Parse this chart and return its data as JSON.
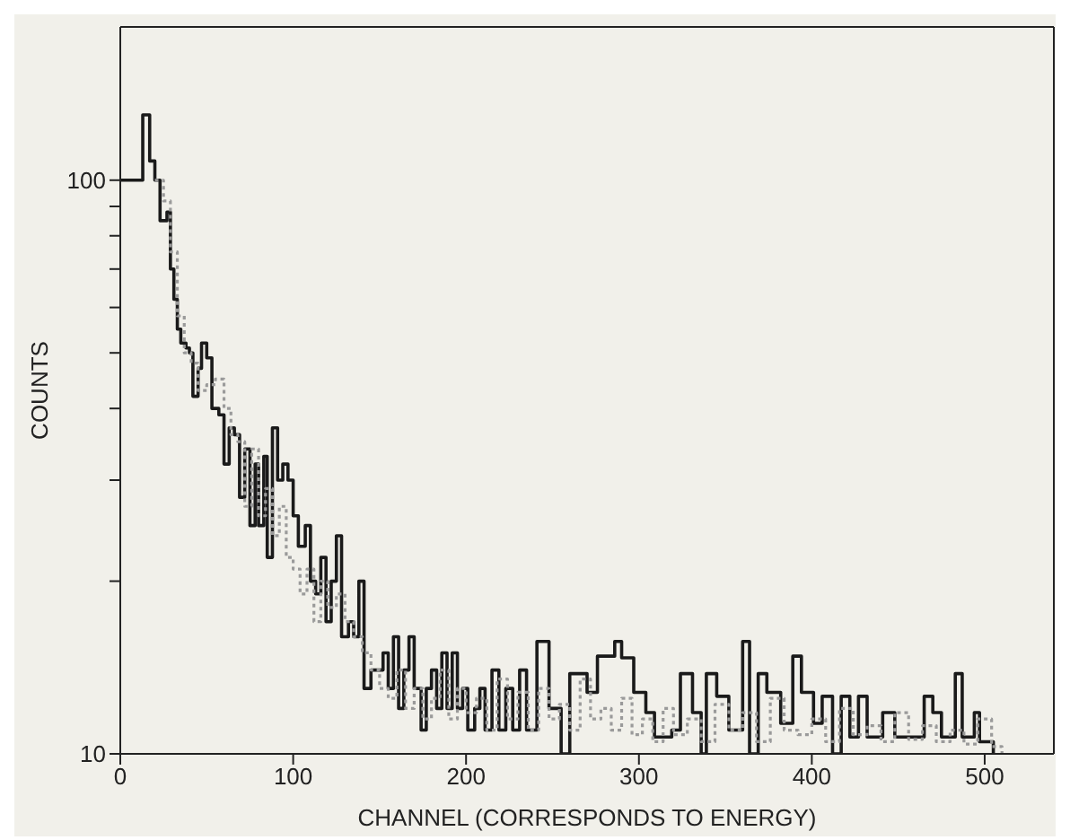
{
  "chart_data": {
    "type": "step",
    "xlabel": "CHANNEL (CORRESPONDS TO ENERGY)",
    "ylabel": "COUNTS",
    "log": "y",
    "xlim": [
      0,
      540
    ],
    "xticks": [
      0,
      100,
      200,
      300,
      400,
      500
    ],
    "ylim": [
      10,
      185
    ],
    "yticks": [
      10,
      {
        "value": 20,
        "label": null
      },
      {
        "value": 30,
        "label": null
      },
      {
        "value": 40,
        "label": null
      },
      {
        "value": 50,
        "label": null
      },
      {
        "value": 60,
        "label": null
      },
      {
        "value": 70,
        "label": null
      },
      {
        "value": 80,
        "label": null
      },
      {
        "value": 90,
        "label": null
      },
      100
    ],
    "series": [
      {
        "color": "#1a1a1a",
        "line_style": "solid",
        "x": [
          0,
          13,
          17,
          20,
          23,
          27,
          29,
          31,
          33,
          35,
          38,
          40,
          42,
          45,
          47,
          50,
          53,
          57,
          60,
          63,
          66,
          69,
          72,
          75,
          78,
          80,
          83,
          85,
          88,
          91,
          94,
          97,
          100,
          103,
          107,
          110,
          113,
          116,
          119,
          122,
          125,
          128,
          132,
          135,
          138,
          141,
          145,
          148,
          152,
          155,
          158,
          161,
          164,
          167,
          170,
          174,
          177,
          180,
          183,
          186,
          189,
          192,
          195,
          198,
          201,
          205,
          208,
          211,
          215,
          219,
          223,
          227,
          231,
          235,
          241,
          248,
          255,
          260,
          270,
          276,
          286,
          290,
          297,
          304,
          309,
          319,
          324,
          331,
          336,
          339,
          345,
          352,
          360,
          364,
          369,
          374,
          382,
          389,
          394,
          401,
          406,
          412,
          417,
          422,
          427,
          432,
          441,
          448,
          455,
          465,
          470,
          475,
          483,
          487,
          494,
          497,
          505
        ],
        "values": [
          100,
          130,
          108,
          100,
          85,
          88,
          70,
          62,
          55,
          52,
          51,
          50,
          42,
          47,
          52,
          49,
          40,
          39,
          32,
          37,
          36,
          28,
          34,
          25,
          32,
          25,
          33,
          22,
          37,
          30,
          32,
          30,
          26,
          23,
          25,
          20,
          19,
          22,
          17,
          20,
          24,
          16,
          17,
          16,
          20,
          13,
          14,
          14,
          15,
          13,
          16,
          12,
          14,
          16,
          13,
          11,
          13,
          14,
          12,
          15,
          12,
          15,
          12,
          13,
          11,
          12,
          13,
          11,
          14,
          11,
          13,
          11,
          14,
          11,
          15.7,
          12,
          10,
          13.8,
          12.8,
          14.8,
          15.7,
          14.7,
          12.8,
          11.8,
          10.7,
          11,
          13.8,
          11.8,
          10,
          13.8,
          12.6,
          11,
          15.7,
          10,
          13.8,
          12.8,
          11.3,
          14.8,
          12.8,
          11.3,
          12.6,
          10,
          12.6,
          10.7,
          12.6,
          10.7,
          11.8,
          10.7,
          10.7,
          12.6,
          11.8,
          10.7,
          13.8,
          10.7,
          11.8,
          10.5,
          10
        ]
      },
      {
        "color": "#9a9a9a",
        "line_style": "dotted",
        "x": [
          20,
          25,
          29,
          33,
          37,
          41,
          45,
          50,
          55,
          60,
          64,
          68,
          72,
          76,
          80,
          84,
          88,
          92,
          96,
          100,
          104,
          108,
          112,
          116,
          120,
          125,
          130,
          135,
          140,
          145,
          150,
          155,
          160,
          165,
          170,
          175,
          180,
          185,
          190,
          195,
          200,
          206,
          212,
          218,
          224,
          230,
          236,
          242,
          248,
          254,
          260,
          266,
          272,
          278,
          284,
          290,
          296,
          302,
          308,
          314,
          320,
          328,
          336,
          344,
          352,
          360,
          368,
          376,
          384,
          392,
          400,
          408,
          416,
          424,
          432,
          440,
          448,
          456,
          464,
          472,
          480,
          488,
          496,
          504,
          510
        ],
        "values": [
          100,
          92,
          75,
          58,
          50,
          48,
          43,
          44,
          45,
          40,
          36,
          35,
          27,
          34,
          26,
          29,
          24,
          27,
          22,
          21,
          19,
          21,
          17,
          20,
          18,
          19,
          17,
          16,
          15,
          14,
          13,
          12.5,
          14,
          12,
          13,
          11.5,
          12.5,
          14,
          11.5,
          13,
          11.8,
          12.5,
          11,
          13.5,
          11.5,
          12.8,
          11,
          13,
          11.5,
          12.2,
          11,
          13.5,
          11.5,
          12,
          11,
          12.5,
          10.8,
          11.5,
          10.5,
          12,
          10.8,
          11.5,
          10.5,
          12.2,
          11,
          11.8,
          10.5,
          12.5,
          11,
          10.8,
          11.5,
          10.5,
          12,
          10.8,
          11.2,
          10.5,
          11.8,
          10.6,
          11.2,
          10.5,
          11,
          10.4,
          11.5,
          10.3,
          10
        ]
      }
    ]
  }
}
